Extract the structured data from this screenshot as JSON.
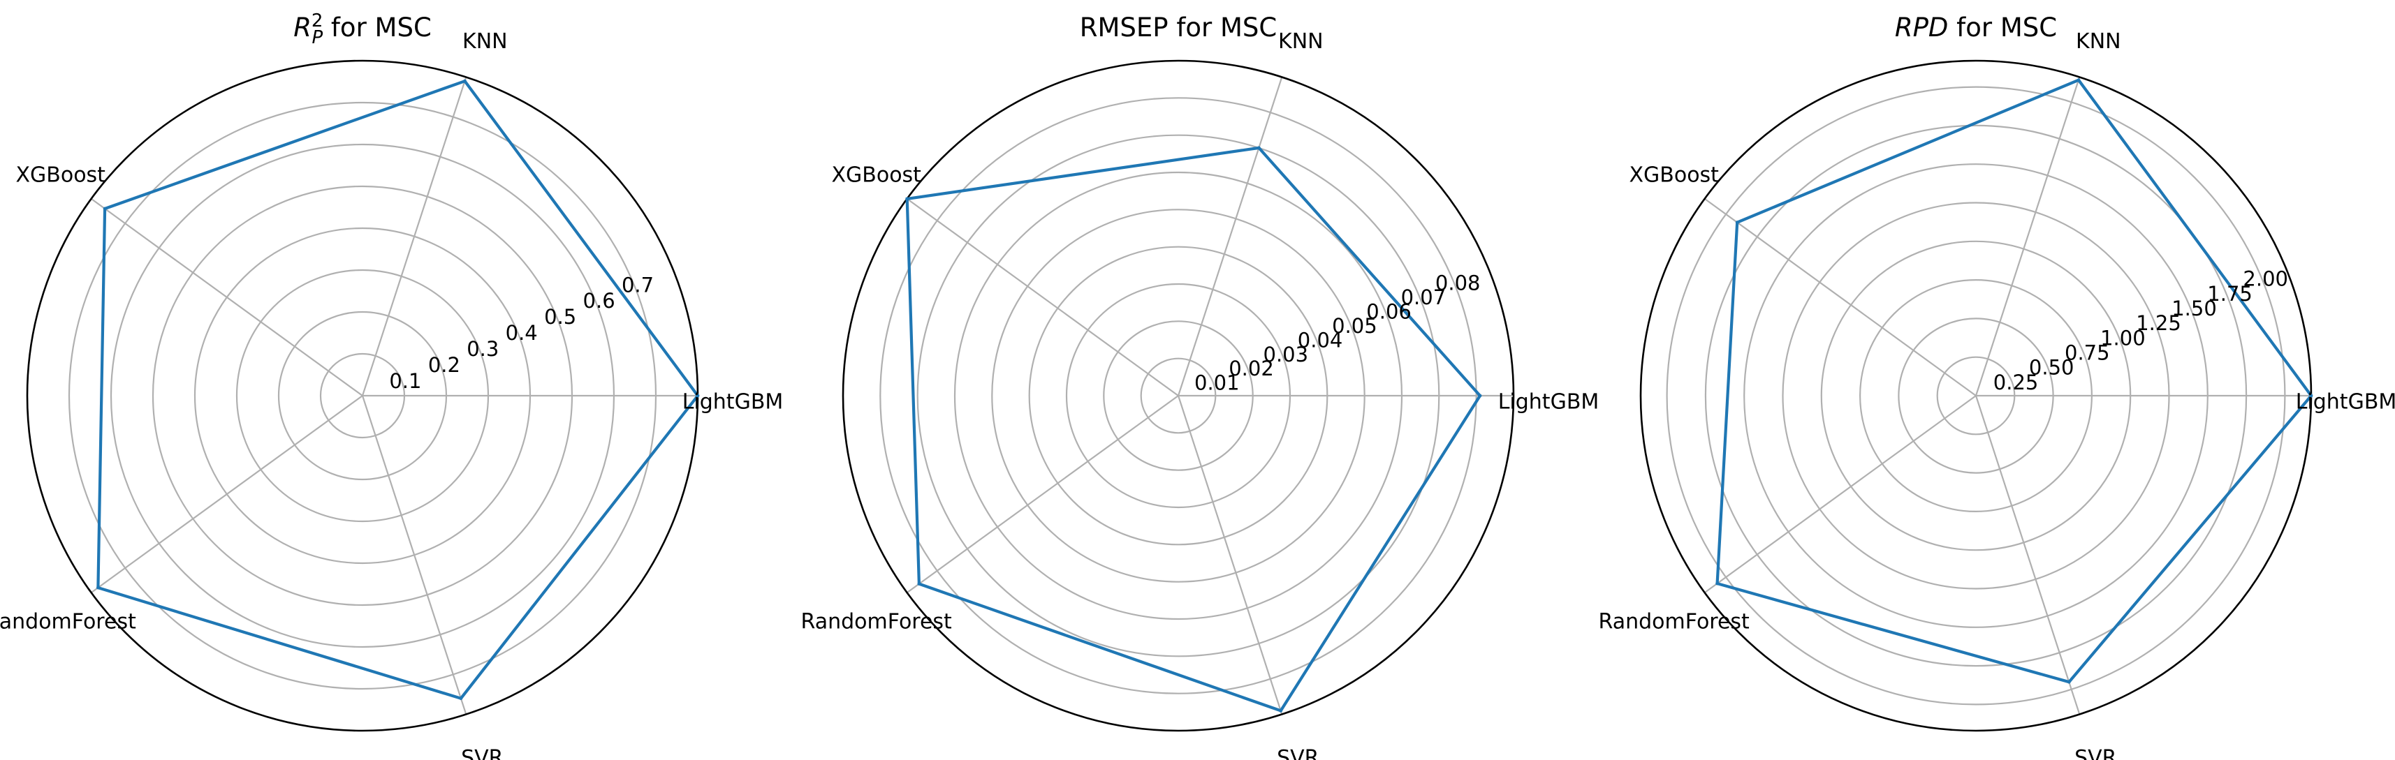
{
  "figure": {
    "colors": {
      "series": "#1f77b4",
      "grid": "#b0b0b0",
      "frame": "#000000"
    }
  },
  "chart_data": [
    {
      "type": "radar",
      "title_main": "R",
      "title_sup": "2",
      "title_sub": "P",
      "title_rest": " for MSC",
      "categories": [
        "LightGBM",
        "KNN",
        "XGBoost",
        "RandomForest",
        "SVR"
      ],
      "values": [
        0.8,
        0.79,
        0.76,
        0.78,
        0.76
      ],
      "rlim": [
        0,
        0.8
      ],
      "rticks": [
        0.1,
        0.2,
        0.3,
        0.4,
        0.5,
        0.6,
        0.7
      ],
      "rtick_labels": [
        "0.1",
        "0.2",
        "0.3",
        "0.4",
        "0.5",
        "0.6",
        "0.7"
      ],
      "grid": true
    },
    {
      "type": "radar",
      "title": "RMSEP for MSC",
      "categories": [
        "LightGBM",
        "KNN",
        "XGBoost",
        "RandomForest",
        "SVR"
      ],
      "values": [
        0.081,
        0.07,
        0.09,
        0.086,
        0.089
      ],
      "rlim": [
        0,
        0.09
      ],
      "rticks": [
        0.01,
        0.02,
        0.03,
        0.04,
        0.05,
        0.06,
        0.07,
        0.08
      ],
      "rtick_labels": [
        "0.01",
        "0.02",
        "0.03",
        "0.04",
        "0.05",
        "0.06",
        "0.07",
        "0.08"
      ],
      "grid": true
    },
    {
      "type": "radar",
      "title_italic": "RPD",
      "title_rest": " for MSC",
      "categories": [
        "LightGBM",
        "KNN",
        "XGBoost",
        "RandomForest",
        "SVR"
      ],
      "values": [
        2.17,
        2.15,
        1.91,
        2.07,
        1.95
      ],
      "rlim": [
        0,
        2.17
      ],
      "rticks": [
        0.25,
        0.5,
        0.75,
        1.0,
        1.25,
        1.5,
        1.75,
        2.0
      ],
      "rtick_labels": [
        "0.25",
        "0.50",
        "0.75",
        "1.00",
        "1.25",
        "1.50",
        "1.75",
        "2.00"
      ],
      "grid": true
    }
  ]
}
